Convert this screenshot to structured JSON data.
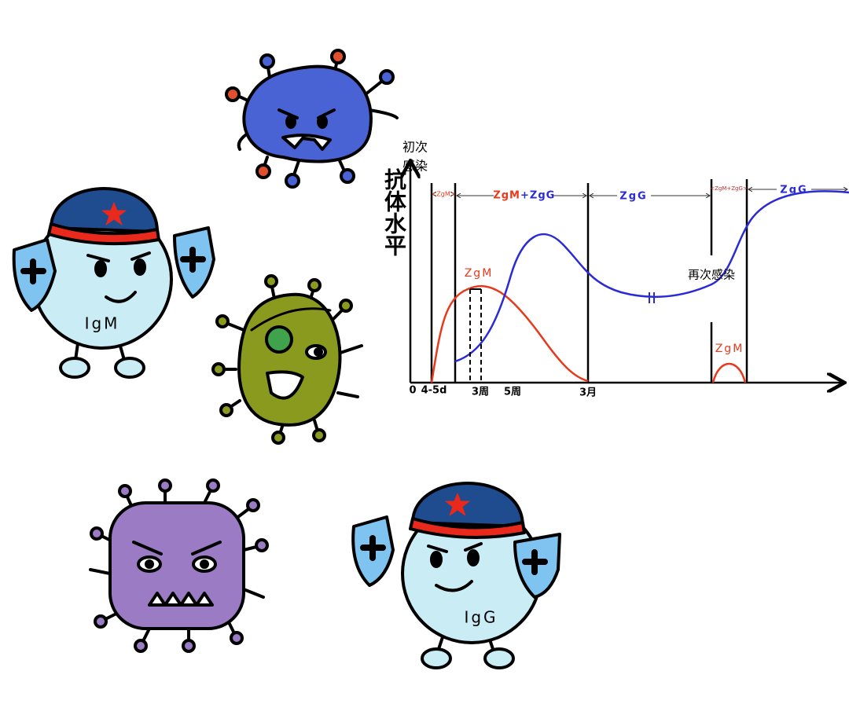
{
  "chart": {
    "y_axis_label": "抗体水平",
    "first_infection": [
      "初次",
      "感染"
    ],
    "phases": [
      "<ZgM>",
      "ZgM",
      "+ZgG",
      "ZgG",
      "<ZgM+ZgG>",
      "ZgG"
    ],
    "curve_labels": {
      "primary_igm": "ZgM",
      "reinfection_igm": "ZgM"
    },
    "reinfection": "再次感染",
    "x_labels": [
      "0",
      "4-5d",
      "3周",
      "5周",
      "3月"
    ]
  },
  "characters": {
    "igm": "IgM",
    "igg": "IgG"
  }
}
